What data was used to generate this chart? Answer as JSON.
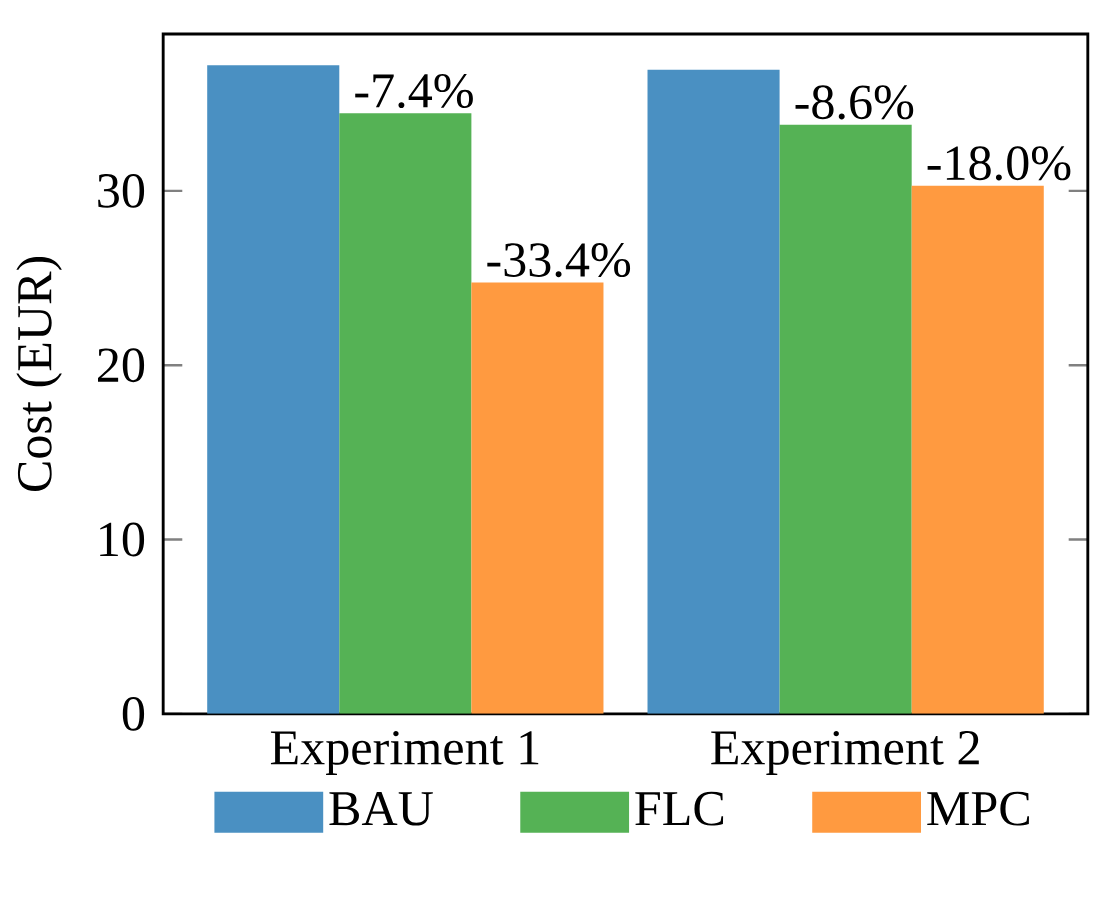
{
  "chart_data": {
    "type": "bar",
    "ylabel": "Cost (EUR)",
    "categories": [
      "Experiment 1",
      "Experiment 2"
    ],
    "series": [
      {
        "name": "BAU",
        "color": "#4a90c2",
        "values": [
          37.2,
          36.95
        ]
      },
      {
        "name": "FLC",
        "color": "#55b255",
        "values": [
          34.45,
          33.8
        ]
      },
      {
        "name": "MPC",
        "color": "#ff9a40",
        "values": [
          24.75,
          30.3
        ]
      }
    ],
    "annotations": [
      "-7.4%",
      "-8.6%",
      "-33.4%",
      "-18.0%"
    ],
    "ylim": [
      0,
      39
    ],
    "yticks": [
      0,
      10,
      20,
      30
    ],
    "grid": false,
    "legend": "bottom"
  }
}
